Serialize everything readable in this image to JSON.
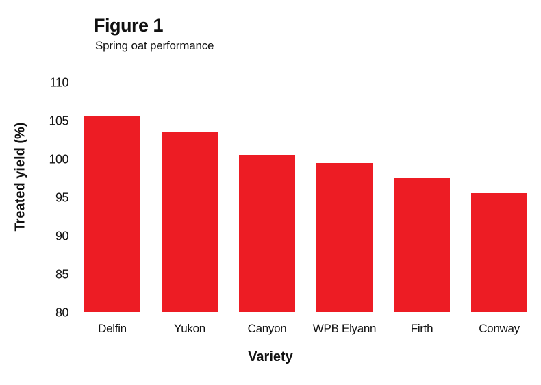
{
  "figure": {
    "title": "Figure 1",
    "subtitle": "Spring oat performance"
  },
  "chart_data": {
    "type": "bar",
    "title": "Figure 1",
    "subtitle": "Spring oat performance",
    "categories": [
      "Delfin",
      "Yukon",
      "Canyon",
      "WPB Elyann",
      "Firth",
      "Conway"
    ],
    "values": [
      105.5,
      103.5,
      100.5,
      99.5,
      97.5,
      95.5
    ],
    "xlabel": "Variety",
    "ylabel": "Treated yield (%)",
    "ylim": [
      80,
      110
    ],
    "yticks": [
      80,
      85,
      90,
      95,
      100,
      105,
      110
    ],
    "grid": false,
    "legend": "none",
    "bar_color": "#ED1C24",
    "text_color": "#111111",
    "background": "#FFFFFF"
  }
}
